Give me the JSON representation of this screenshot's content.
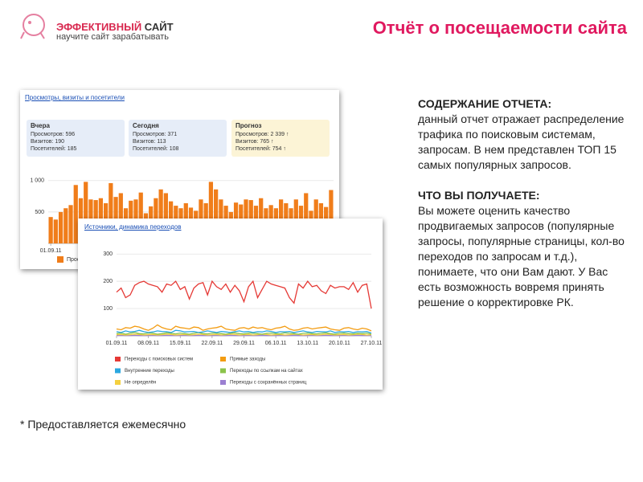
{
  "header": {
    "logo_name_1": "ЭФФЕКТИВНЫЙ",
    "logo_name_2": "САЙТ",
    "logo_tagline": "научите сайт зарабатывать",
    "title": "Отчёт о посещаемости сайта"
  },
  "screenshot_1": {
    "link": "Просмотры, визиты и посетители",
    "cards": [
      {
        "title": "Вчера",
        "lines": [
          "Просмотров: 596",
          "Визитов: 190",
          "Посетителей: 185"
        ]
      },
      {
        "title": "Сегодня",
        "lines": [
          "Просмотров: 371",
          "Визитов: 113",
          "Посетителей: 108"
        ]
      },
      {
        "title": "Прогноз",
        "lines": [
          "Просмотров: 2 339 ↑",
          "Визитов: 765 ↑",
          "Посетителей: 754 ↑"
        ]
      }
    ],
    "chart": {
      "type": "bar",
      "color": "#f07d1a",
      "series": [
        {
          "name": "Просмотры",
          "color": "#f07d1a",
          "values": [
            420,
            380,
            500,
            560,
            610,
            930,
            720,
            980,
            700,
            690,
            720,
            640,
            960,
            740,
            800,
            560,
            680,
            700,
            810,
            480,
            590,
            720,
            860,
            800,
            670,
            600,
            560,
            640,
            570,
            520,
            700,
            640,
            980,
            860,
            700,
            600,
            500,
            650,
            620,
            700,
            690,
            600,
            720,
            560,
            610,
            560,
            700,
            640,
            560,
            700,
            600,
            800,
            520,
            700,
            640,
            580,
            850
          ]
        }
      ],
      "xlim": [
        0,
        56
      ],
      "xticks": [
        {
          "value": 0,
          "label": "01.09.11"
        }
      ],
      "ylim": [
        0,
        1100
      ],
      "yticks": [
        {
          "value": 1000,
          "label": "1 000"
        },
        500
      ],
      "grid": true
    }
  },
  "screenshot_2": {
    "link": "Источники, динамика переходов",
    "chart": {
      "type": "line",
      "xlim": [
        0,
        56
      ],
      "xticks": [
        {
          "value": 0,
          "label": "01.09.11"
        },
        {
          "value": 7,
          "label": "08.09.11"
        },
        {
          "value": 14,
          "label": "15.09.11"
        },
        {
          "value": 21,
          "label": "22.09.11"
        },
        {
          "value": 28,
          "label": "29.09.11"
        },
        {
          "value": 35,
          "label": "06.10.11"
        },
        {
          "value": 42,
          "label": "13.10.11"
        },
        {
          "value": 49,
          "label": "20.10.11"
        },
        {
          "value": 56,
          "label": "27.10.11"
        }
      ],
      "ylim": [
        0,
        330
      ],
      "yticks": [
        300,
        200,
        100
      ],
      "grid": true,
      "series": [
        {
          "name": "Переходы с поисковых систем",
          "color": "#e53935",
          "values": [
            160,
            175,
            140,
            150,
            185,
            195,
            200,
            190,
            185,
            180,
            160,
            190,
            185,
            200,
            170,
            180,
            135,
            175,
            190,
            195,
            150,
            200,
            180,
            170,
            190,
            160,
            185,
            165,
            125,
            180,
            200,
            140,
            170,
            200,
            190,
            185,
            180,
            175,
            140,
            120,
            190,
            175,
            200,
            180,
            185,
            165,
            155,
            185,
            175,
            180,
            180,
            170,
            195,
            160,
            185,
            190,
            100
          ]
        },
        {
          "name": "Прямые заходы",
          "color": "#f39c12",
          "values": [
            25,
            22,
            30,
            28,
            35,
            32,
            25,
            20,
            28,
            40,
            30,
            25,
            22,
            35,
            30,
            28,
            25,
            32,
            30,
            20,
            25,
            28,
            30,
            35,
            25,
            22,
            20,
            28,
            30,
            25,
            32,
            28,
            30,
            25,
            22,
            28,
            30,
            35,
            25,
            20,
            22,
            28,
            30,
            25,
            28,
            30,
            32,
            25,
            22,
            20,
            28,
            30,
            25,
            22,
            28,
            25,
            18
          ]
        },
        {
          "name": "Внутренние переходы",
          "color": "#2aa7e0",
          "values": [
            15,
            12,
            18,
            14,
            16,
            20,
            15,
            12,
            14,
            18,
            16,
            15,
            12,
            20,
            18,
            14,
            15,
            16,
            12,
            14,
            18,
            15,
            12,
            16,
            14,
            12,
            15,
            18,
            14,
            16,
            12,
            15,
            14,
            18,
            16,
            12,
            15,
            14,
            16,
            12,
            15,
            18,
            14,
            12,
            16,
            15,
            14,
            18,
            12,
            15,
            14,
            16,
            12,
            15,
            14,
            16,
            10
          ]
        },
        {
          "name": "Переходы по ссылкам на сайтах",
          "color": "#8bc34a",
          "values": [
            8,
            10,
            6,
            9,
            12,
            8,
            7,
            10,
            9,
            6,
            8,
            11,
            9,
            7,
            10,
            8,
            6,
            9,
            12,
            8,
            7,
            10,
            9,
            8,
            6,
            9,
            11,
            8,
            7,
            10,
            9,
            8,
            6,
            9,
            10,
            8,
            7,
            11,
            9,
            8,
            6,
            9,
            10,
            8,
            7,
            9,
            11,
            8,
            6,
            9,
            10,
            8,
            7,
            9,
            8,
            10,
            6
          ]
        },
        {
          "name": "Не определён",
          "color": "#f4d03f",
          "values": [
            4,
            5,
            3,
            4,
            6,
            5,
            3,
            4,
            5,
            3,
            4,
            6,
            5,
            3,
            4,
            5,
            3,
            4,
            6,
            5,
            3,
            4,
            5,
            3,
            4,
            6,
            5,
            3,
            4,
            5,
            3,
            4,
            6,
            5,
            3,
            4,
            5,
            3,
            4,
            6,
            5,
            3,
            4,
            5,
            3,
            4,
            6,
            5,
            3,
            4,
            5,
            3,
            4,
            6,
            5,
            3,
            4
          ]
        },
        {
          "name": "Переходы с сохранённых страниц",
          "color": "#9b7fd1",
          "values": [
            1,
            2,
            1,
            1,
            2,
            1,
            1,
            1,
            2,
            1,
            1,
            2,
            1,
            1,
            1,
            2,
            1,
            1,
            2,
            1,
            1,
            1,
            2,
            1,
            1,
            2,
            1,
            1,
            1,
            2,
            1,
            1,
            2,
            1,
            1,
            1,
            2,
            1,
            1,
            2,
            1,
            1,
            1,
            2,
            1,
            1,
            2,
            1,
            1,
            1,
            2,
            1,
            1,
            2,
            1,
            1,
            1
          ]
        }
      ]
    }
  },
  "body": {
    "sections": [
      {
        "heading": "СОДЕРЖАНИЕ ОТЧЕТА:",
        "text": "данный отчет отражает распределение трафика по поисковым системам, запросам. В нем представлен ТОП 15 самых популярных  запросов."
      },
      {
        "heading": "ЧТО ВЫ ПОЛУЧАЕТЕ:",
        "text": "Вы можете оценить качество продвигаемых запросов (популярные запросы, популярные страницы, кол-во переходов по запросам и т.д.), понимаете, что они Вам дают. У Вас есть возможность вовремя принять решение о корректировке РК."
      }
    ],
    "footnote": "* Предоставляется ежемесячно"
  }
}
